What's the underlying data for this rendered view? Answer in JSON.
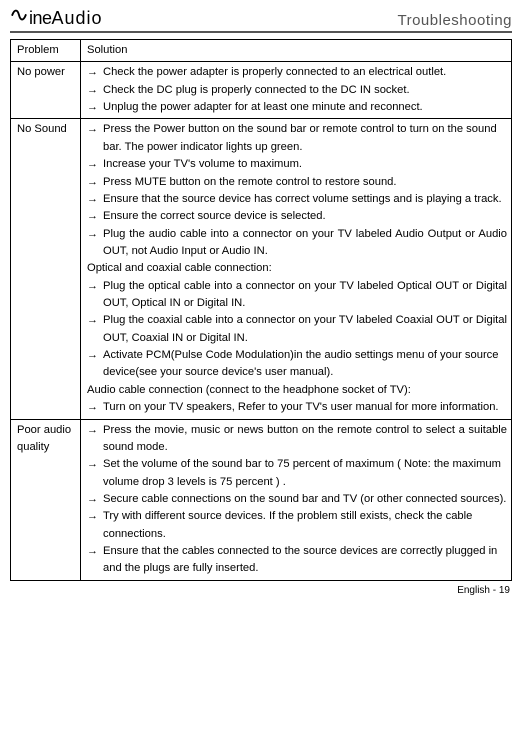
{
  "brand": {
    "sine": "ine",
    "audio": "Audio"
  },
  "page_title": "Troubleshooting",
  "table": {
    "head": {
      "problem": "Problem",
      "solution": "Solution"
    },
    "rows": [
      {
        "problem": "No power",
        "items": [
          {
            "t": "arrow",
            "text": "Check the power adapter is properly connected to an electrical outlet."
          },
          {
            "t": "arrow",
            "text": "Check the DC plug is properly connected to the DC IN socket."
          },
          {
            "t": "arrow",
            "text": "Unplug the power adapter for at least one minute and reconnect."
          }
        ]
      },
      {
        "problem": "No Sound",
        "items": [
          {
            "t": "arrow",
            "text": "Press the Power button on the sound bar or remote control to turn on the sound bar. The power indicator lights up green."
          },
          {
            "t": "arrow",
            "text": "Increase your TV's volume to maximum."
          },
          {
            "t": "arrow",
            "text": "Press MUTE button on the remote control to restore sound."
          },
          {
            "t": "arrow",
            "justify": true,
            "text": "Ensure that the source device has correct volume settings and is playing a track."
          },
          {
            "t": "arrow",
            "text": "Ensure the correct source device is selected."
          },
          {
            "t": "arrow",
            "justify": true,
            "text": "Plug the audio cable into a connector on your TV labeled Audio Output or Audio OUT, not Audio Input or Audio IN."
          },
          {
            "t": "sub",
            "text": "Optical and coaxial cable connection:"
          },
          {
            "t": "arrow",
            "justify": true,
            "text": "Plug the optical cable into a connector on your TV labeled Optical OUT or Digital OUT, Optical IN or Digital IN."
          },
          {
            "t": "arrow",
            "justify": true,
            "text": "Plug the coaxial cable into a connector on your TV labeled Coaxial OUT or Digital OUT, Coaxial IN or Digital IN."
          },
          {
            "t": "arrow",
            "text": "Activate PCM(Pulse Code Modulation)in the audio settings menu of your source device(see your source device's user manual)."
          },
          {
            "t": "sub",
            "text": "Audio cable connection (connect to the headphone socket of TV):"
          },
          {
            "t": "arrow",
            "text": "Turn on your TV speakers, Refer to your TV's user manual for more information."
          }
        ]
      },
      {
        "problem": "Poor audio quality",
        "items": [
          {
            "t": "arrow",
            "justify": true,
            "text": "Press the movie, music or news button on the remote control to select a suitable sound mode."
          },
          {
            "t": "arrow",
            "text": "Set the volume of the sound bar to 75 percent of maximum ( Note: the maximum volume drop 3 levels is 75 percent ) ."
          },
          {
            "t": "arrow",
            "justify": true,
            "text": "Secure cable connections on the sound bar and TV (or other connected sources)."
          },
          {
            "t": "arrow",
            "text": "Try with different source devices. If the problem still exists, check the cable connections."
          },
          {
            "t": "arrow",
            "text": "Ensure that the cables connected to the source devices are correctly plugged in and the plugs are fully inserted."
          }
        ]
      }
    ]
  },
  "footer": "English - 19"
}
